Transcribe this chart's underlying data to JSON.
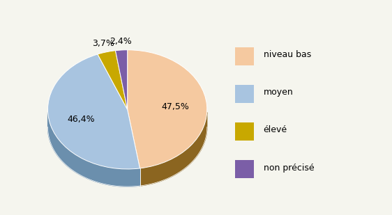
{
  "labels": [
    "niveau bas",
    "moyen",
    "élevé",
    "non précisé"
  ],
  "values": [
    47.5,
    46.4,
    3.7,
    2.4
  ],
  "colors": [
    "#F5C9A0",
    "#A8C4E0",
    "#C8A800",
    "#7B5EA7"
  ],
  "side_colors": [
    "#8B6520",
    "#6B8FAD",
    "#806800",
    "#4B3070"
  ],
  "pct_labels": [
    "47,5%",
    "46,4%",
    "3,7%",
    "2,4%"
  ],
  "startangle": 90,
  "background_color": "#F5F5EE",
  "legend_colors": [
    "#F5C9A0",
    "#A8C4E0",
    "#C8A800",
    "#7B5EA7"
  ]
}
